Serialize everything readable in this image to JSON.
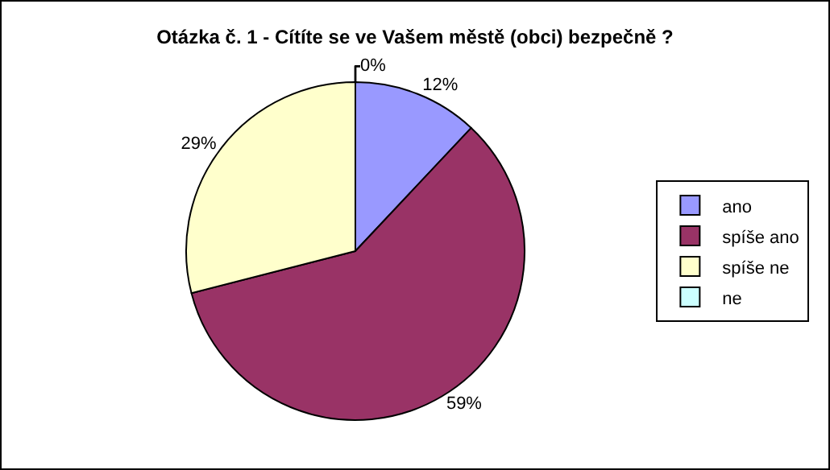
{
  "chart_data": {
    "type": "pie",
    "title": "Otázka č. 1 - Cítíte se ve Vašem městě (obci) bezpečně ?",
    "categories": [
      "ano",
      "spíše ano",
      "spíše ne",
      "ne"
    ],
    "values": [
      12,
      59,
      29,
      0
    ],
    "value_labels": [
      "12%",
      "59%",
      "29%",
      "0%"
    ],
    "colors": [
      "#9999ff",
      "#993366",
      "#ffffcc",
      "#ccffff"
    ],
    "legend": "right"
  }
}
